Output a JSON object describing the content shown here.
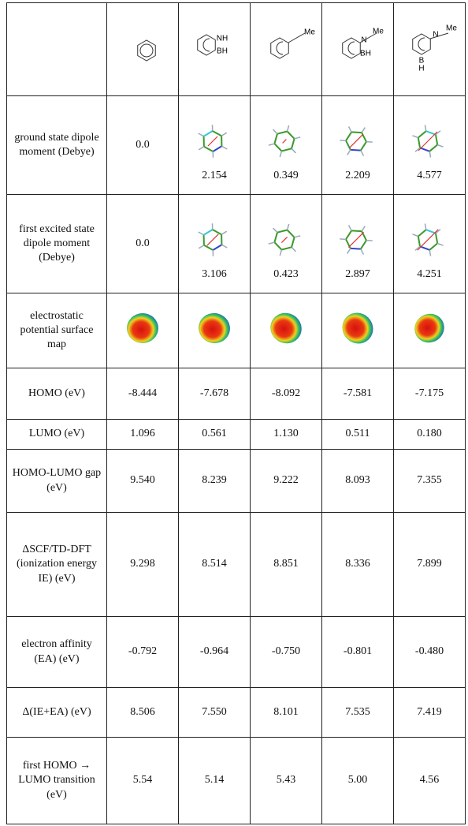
{
  "header": {
    "structures": [
      {
        "labels": []
      },
      {
        "labels": [
          "NH",
          "BH"
        ]
      },
      {
        "labels": [
          "Me"
        ]
      },
      {
        "labels": [
          "N",
          "Me",
          "BH"
        ]
      },
      {
        "labels": [
          "N",
          "Me",
          "B",
          "H"
        ]
      }
    ]
  },
  "rows": [
    {
      "label": "ground state dipole moment (Debye)",
      "values": [
        "0.0",
        "2.154",
        "0.349",
        "2.209",
        "4.577"
      ]
    },
    {
      "label": "first excited state dipole moment (Debye)",
      "values": [
        "0.0",
        "3.106",
        "0.423",
        "2.897",
        "4.251"
      ]
    },
    {
      "label": "electrostatic potential surface map"
    },
    {
      "label": "HOMO (eV)",
      "values": [
        "-8.444",
        "-7.678",
        "-8.092",
        "-7.581",
        "-7.175"
      ]
    },
    {
      "label": "LUMO (eV)",
      "values": [
        "1.096",
        "0.561",
        "1.130",
        "0.511",
        "0.180"
      ]
    },
    {
      "label": "HOMO-LUMO gap (eV)",
      "values": [
        "9.540",
        "8.239",
        "9.222",
        "8.093",
        "7.355"
      ]
    },
    {
      "label": "ΔSCF/TD-DFT (ionization energy IE) (eV)",
      "values": [
        "9.298",
        "8.514",
        "8.851",
        "8.336",
        "7.899"
      ]
    },
    {
      "label": "electron affinity (EA) (eV)",
      "values": [
        "-0.792",
        "-0.964",
        "-0.750",
        "-0.801",
        "-0.480"
      ]
    },
    {
      "label": "Δ(IE+EA) (eV)",
      "values": [
        "8.506",
        "7.550",
        "8.101",
        "7.535",
        "7.419"
      ]
    },
    {
      "label": "first HOMO → LUMO transition (eV)",
      "values": [
        "5.54",
        "5.14",
        "5.43",
        "5.00",
        "4.56"
      ]
    }
  ]
}
